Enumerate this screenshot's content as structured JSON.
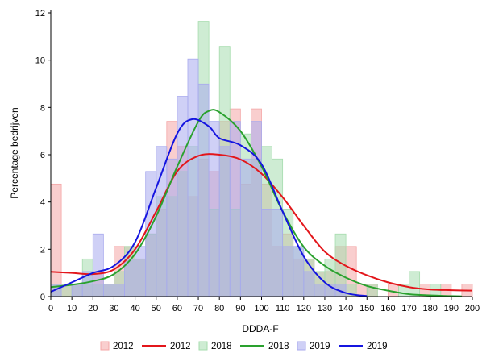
{
  "chart_data": {
    "type": "bar",
    "subtype": "overlaid histogram with density curves",
    "title": "",
    "xlabel": "DDDA-F",
    "ylabel": "Percentage bedrijven",
    "xlim": [
      0,
      200
    ],
    "ylim": [
      0,
      12
    ],
    "x_ticks": [
      0,
      10,
      20,
      30,
      40,
      50,
      60,
      70,
      80,
      90,
      100,
      110,
      120,
      130,
      140,
      150,
      160,
      170,
      180,
      190,
      200
    ],
    "y_ticks": [
      0,
      2,
      4,
      6,
      8,
      10,
      12
    ],
    "bin_width": 5,
    "grid": false,
    "legend_position": "bottom",
    "histograms": [
      {
        "name": "2012",
        "color": "#f4a6a6",
        "bins": [
          {
            "x": 2.5,
            "y": 4.76
          },
          {
            "x": 7.5,
            "y": 0.53
          },
          {
            "x": 12.5,
            "y": 0.53
          },
          {
            "x": 17.5,
            "y": 0.53
          },
          {
            "x": 22.5,
            "y": 1.06
          },
          {
            "x": 27.5,
            "y": 0.53
          },
          {
            "x": 32.5,
            "y": 2.12
          },
          {
            "x": 37.5,
            "y": 2.12
          },
          {
            "x": 42.5,
            "y": 1.59
          },
          {
            "x": 47.5,
            "y": 2.65
          },
          {
            "x": 52.5,
            "y": 3.7
          },
          {
            "x": 57.5,
            "y": 7.41
          },
          {
            "x": 62.5,
            "y": 6.35
          },
          {
            "x": 67.5,
            "y": 4.23
          },
          {
            "x": 72.5,
            "y": 5.82
          },
          {
            "x": 77.5,
            "y": 5.29
          },
          {
            "x": 82.5,
            "y": 7.41
          },
          {
            "x": 87.5,
            "y": 7.94
          },
          {
            "x": 92.5,
            "y": 4.76
          },
          {
            "x": 97.5,
            "y": 7.94
          },
          {
            "x": 102.5,
            "y": 4.76
          },
          {
            "x": 107.5,
            "y": 2.12
          },
          {
            "x": 112.5,
            "y": 2.65
          },
          {
            "x": 117.5,
            "y": 1.59
          },
          {
            "x": 122.5,
            "y": 1.59
          },
          {
            "x": 127.5,
            "y": 1.06
          },
          {
            "x": 132.5,
            "y": 1.06
          },
          {
            "x": 137.5,
            "y": 2.12
          },
          {
            "x": 142.5,
            "y": 2.12
          },
          {
            "x": 147.5,
            "y": 0.53
          },
          {
            "x": 152.5,
            "y": 0.53
          },
          {
            "x": 162.5,
            "y": 0.53
          },
          {
            "x": 177.5,
            "y": 0.53
          },
          {
            "x": 187.5,
            "y": 0.53
          },
          {
            "x": 197.5,
            "y": 0.53
          }
        ]
      },
      {
        "name": "2018",
        "color": "#a6dcae",
        "bins": [
          {
            "x": 2.5,
            "y": 0.53
          },
          {
            "x": 7.5,
            "y": 0.53
          },
          {
            "x": 12.5,
            "y": 0.53
          },
          {
            "x": 17.5,
            "y": 1.59
          },
          {
            "x": 22.5,
            "y": 0.53
          },
          {
            "x": 27.5,
            "y": 0.53
          },
          {
            "x": 32.5,
            "y": 1.06
          },
          {
            "x": 37.5,
            "y": 2.12
          },
          {
            "x": 42.5,
            "y": 1.59
          },
          {
            "x": 47.5,
            "y": 2.65
          },
          {
            "x": 52.5,
            "y": 4.23
          },
          {
            "x": 57.5,
            "y": 4.23
          },
          {
            "x": 62.5,
            "y": 5.29
          },
          {
            "x": 67.5,
            "y": 6.35
          },
          {
            "x": 72.5,
            "y": 11.64
          },
          {
            "x": 77.5,
            "y": 3.7
          },
          {
            "x": 82.5,
            "y": 10.58
          },
          {
            "x": 87.5,
            "y": 3.7
          },
          {
            "x": 92.5,
            "y": 6.88
          },
          {
            "x": 97.5,
            "y": 5.82
          },
          {
            "x": 102.5,
            "y": 6.35
          },
          {
            "x": 107.5,
            "y": 5.82
          },
          {
            "x": 112.5,
            "y": 3.7
          },
          {
            "x": 117.5,
            "y": 2.12
          },
          {
            "x": 122.5,
            "y": 1.59
          },
          {
            "x": 127.5,
            "y": 1.06
          },
          {
            "x": 132.5,
            "y": 1.59
          },
          {
            "x": 137.5,
            "y": 2.65
          },
          {
            "x": 142.5,
            "y": 0.53
          },
          {
            "x": 152.5,
            "y": 0.53
          },
          {
            "x": 167.5,
            "y": 0.53
          },
          {
            "x": 172.5,
            "y": 1.06
          },
          {
            "x": 182.5,
            "y": 0.53
          }
        ]
      },
      {
        "name": "2019",
        "color": "#a8aaee",
        "bins": [
          {
            "x": 2.5,
            "y": 0.53
          },
          {
            "x": 12.5,
            "y": 0.53
          },
          {
            "x": 17.5,
            "y": 1.06
          },
          {
            "x": 22.5,
            "y": 2.65
          },
          {
            "x": 27.5,
            "y": 0.53
          },
          {
            "x": 32.5,
            "y": 0.53
          },
          {
            "x": 37.5,
            "y": 1.59
          },
          {
            "x": 42.5,
            "y": 2.12
          },
          {
            "x": 47.5,
            "y": 5.29
          },
          {
            "x": 52.5,
            "y": 6.35
          },
          {
            "x": 57.5,
            "y": 5.82
          },
          {
            "x": 62.5,
            "y": 8.47
          },
          {
            "x": 67.5,
            "y": 10.05
          },
          {
            "x": 72.5,
            "y": 8.99
          },
          {
            "x": 77.5,
            "y": 7.41
          },
          {
            "x": 82.5,
            "y": 6.35
          },
          {
            "x": 87.5,
            "y": 7.41
          },
          {
            "x": 92.5,
            "y": 5.82
          },
          {
            "x": 97.5,
            "y": 7.41
          },
          {
            "x": 102.5,
            "y": 3.7
          },
          {
            "x": 107.5,
            "y": 3.7
          },
          {
            "x": 112.5,
            "y": 2.12
          },
          {
            "x": 117.5,
            "y": 2.12
          },
          {
            "x": 122.5,
            "y": 1.06
          },
          {
            "x": 127.5,
            "y": 0.53
          },
          {
            "x": 132.5,
            "y": 0.53
          },
          {
            "x": 137.5,
            "y": 0.53
          }
        ]
      }
    ],
    "series": [
      {
        "name": "2012",
        "type": "density",
        "color": "#e3161b",
        "points": [
          [
            0,
            1.05
          ],
          [
            10,
            1.0
          ],
          [
            20,
            0.95
          ],
          [
            30,
            1.15
          ],
          [
            40,
            2.0
          ],
          [
            50,
            3.6
          ],
          [
            60,
            5.3
          ],
          [
            70,
            5.95
          ],
          [
            80,
            6.0
          ],
          [
            90,
            5.8
          ],
          [
            100,
            5.2
          ],
          [
            110,
            4.2
          ],
          [
            120,
            3.0
          ],
          [
            130,
            1.9
          ],
          [
            140,
            1.3
          ],
          [
            150,
            0.9
          ],
          [
            160,
            0.6
          ],
          [
            170,
            0.4
          ],
          [
            180,
            0.3
          ],
          [
            190,
            0.27
          ],
          [
            200,
            0.25
          ]
        ]
      },
      {
        "name": "2018",
        "type": "density",
        "color": "#2aa12e",
        "points": [
          [
            0,
            0.4
          ],
          [
            10,
            0.5
          ],
          [
            20,
            0.65
          ],
          [
            30,
            0.95
          ],
          [
            40,
            1.8
          ],
          [
            50,
            3.4
          ],
          [
            60,
            5.5
          ],
          [
            70,
            7.4
          ],
          [
            75,
            7.85
          ],
          [
            80,
            7.8
          ],
          [
            90,
            7.0
          ],
          [
            100,
            5.5
          ],
          [
            110,
            3.6
          ],
          [
            120,
            2.1
          ],
          [
            130,
            1.3
          ],
          [
            140,
            0.8
          ],
          [
            150,
            0.45
          ],
          [
            160,
            0.25
          ],
          [
            170,
            0.1
          ],
          [
            180,
            0.05
          ],
          [
            190,
            0.02
          ],
          [
            195,
            0.01
          ]
        ]
      },
      {
        "name": "2019",
        "type": "density",
        "color": "#1515e0",
        "points": [
          [
            0,
            0.2
          ],
          [
            10,
            0.6
          ],
          [
            20,
            1.0
          ],
          [
            30,
            1.3
          ],
          [
            40,
            2.3
          ],
          [
            50,
            4.6
          ],
          [
            60,
            6.9
          ],
          [
            67,
            7.5
          ],
          [
            75,
            7.2
          ],
          [
            80,
            6.7
          ],
          [
            90,
            6.4
          ],
          [
            100,
            5.6
          ],
          [
            110,
            3.6
          ],
          [
            120,
            1.7
          ],
          [
            130,
            0.6
          ],
          [
            140,
            0.15
          ],
          [
            150,
            0.02
          ]
        ]
      }
    ],
    "legend": [
      {
        "label": "2012",
        "kind": "bar",
        "color": "#f4a6a6"
      },
      {
        "label": "2012",
        "kind": "line",
        "color": "#e3161b"
      },
      {
        "label": "2018",
        "kind": "bar",
        "color": "#a6dcae"
      },
      {
        "label": "2018",
        "kind": "line",
        "color": "#2aa12e"
      },
      {
        "label": "2019",
        "kind": "bar",
        "color": "#a8aaee"
      },
      {
        "label": "2019",
        "kind": "line",
        "color": "#1515e0"
      }
    ]
  }
}
